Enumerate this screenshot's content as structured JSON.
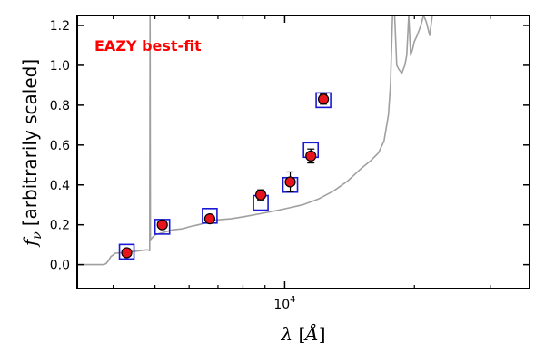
{
  "chart_data": {
    "type": "scatter",
    "xscale": "log",
    "xlim": [
      3300,
      37000
    ],
    "ylim": [
      -0.12,
      1.25
    ],
    "x_tick_labels": [
      {
        "x": 10000,
        "base": "10",
        "exp": "4"
      }
    ],
    "x_minor_ticks": [
      4000,
      5000,
      6000,
      7000,
      8000,
      9000,
      20000,
      30000
    ],
    "y_ticks": [
      0.0,
      0.2,
      0.4,
      0.6,
      0.8,
      1.0,
      1.2
    ],
    "y_tick_labels": [
      "0.0",
      "0.2",
      "0.4",
      "0.6",
      "0.8",
      "1.0",
      "1.2"
    ],
    "xlabel": {
      "symbol": "λ",
      "unit": "Å"
    },
    "ylabel": {
      "symbol": "f",
      "subscript": "ν",
      "text": "[arbitrarily scaled]"
    },
    "annotation": "EAZY best-fit",
    "colors": {
      "annotation": "#ff0000",
      "model_curve": "#a0a0a0",
      "observed_fill": "#e8141c",
      "observed_edge": "#000000",
      "model_box": "#1a1ad6",
      "error_bar": "#000000"
    },
    "series": [
      {
        "kind": "model_spectrum",
        "points": [
          [
            3300,
            0.0
          ],
          [
            3700,
            0.0
          ],
          [
            3800,
            0.0
          ],
          [
            3850,
            0.005
          ],
          [
            3900,
            0.02
          ],
          [
            3950,
            0.04
          ],
          [
            4050,
            0.058
          ],
          [
            4200,
            0.06
          ],
          [
            4400,
            0.065
          ],
          [
            4600,
            0.07
          ],
          [
            4800,
            0.075
          ],
          [
            4860,
            0.07
          ],
          [
            4870,
            1.25
          ],
          [
            4880,
            0.12
          ],
          [
            4900,
            0.13
          ],
          [
            4950,
            0.14
          ],
          [
            5000,
            0.15
          ],
          [
            5200,
            0.16
          ],
          [
            5500,
            0.175
          ],
          [
            5800,
            0.18
          ],
          [
            6000,
            0.19
          ],
          [
            6300,
            0.2
          ],
          [
            6563,
            0.21
          ],
          [
            6700,
            0.22
          ],
          [
            7000,
            0.225
          ],
          [
            7500,
            0.23
          ],
          [
            8000,
            0.24
          ],
          [
            8500,
            0.25
          ],
          [
            9000,
            0.26
          ],
          [
            9500,
            0.27
          ],
          [
            10000,
            0.28
          ],
          [
            11000,
            0.3
          ],
          [
            12000,
            0.33
          ],
          [
            13000,
            0.37
          ],
          [
            14000,
            0.42
          ],
          [
            15000,
            0.48
          ],
          [
            15800,
            0.52
          ],
          [
            16500,
            0.56
          ],
          [
            17000,
            0.62
          ],
          [
            17400,
            0.75
          ],
          [
            17600,
            0.9
          ],
          [
            17800,
            1.25
          ],
          [
            18000,
            1.25
          ],
          [
            18200,
            1.0
          ],
          [
            18400,
            0.98
          ],
          [
            18700,
            0.96
          ],
          [
            19000,
            1.0
          ],
          [
            19200,
            1.05
          ],
          [
            19400,
            1.25
          ],
          [
            19600,
            1.05
          ],
          [
            19800,
            1.08
          ],
          [
            20000,
            1.12
          ],
          [
            20300,
            1.15
          ],
          [
            20700,
            1.2
          ],
          [
            21000,
            1.25
          ],
          [
            21300,
            1.22
          ],
          [
            21700,
            1.15
          ],
          [
            22000,
            1.25
          ]
        ]
      },
      {
        "kind": "model_photometry",
        "points": [
          [
            4300,
            0.065
          ],
          [
            5200,
            0.19
          ],
          [
            6700,
            0.245
          ],
          [
            8800,
            0.31
          ],
          [
            10300,
            0.4
          ],
          [
            11500,
            0.575
          ],
          [
            12300,
            0.825
          ]
        ]
      },
      {
        "kind": "observed",
        "points": [
          {
            "x": 4300,
            "y": 0.06,
            "err": 0.01
          },
          {
            "x": 5200,
            "y": 0.2,
            "err": 0.01
          },
          {
            "x": 6700,
            "y": 0.23,
            "err": 0.01
          },
          {
            "x": 8800,
            "y": 0.35,
            "err": 0.025
          },
          {
            "x": 10300,
            "y": 0.415,
            "err": 0.05
          },
          {
            "x": 11500,
            "y": 0.545,
            "err": 0.035
          },
          {
            "x": 12300,
            "y": 0.83,
            "err": 0.025
          }
        ]
      }
    ]
  }
}
